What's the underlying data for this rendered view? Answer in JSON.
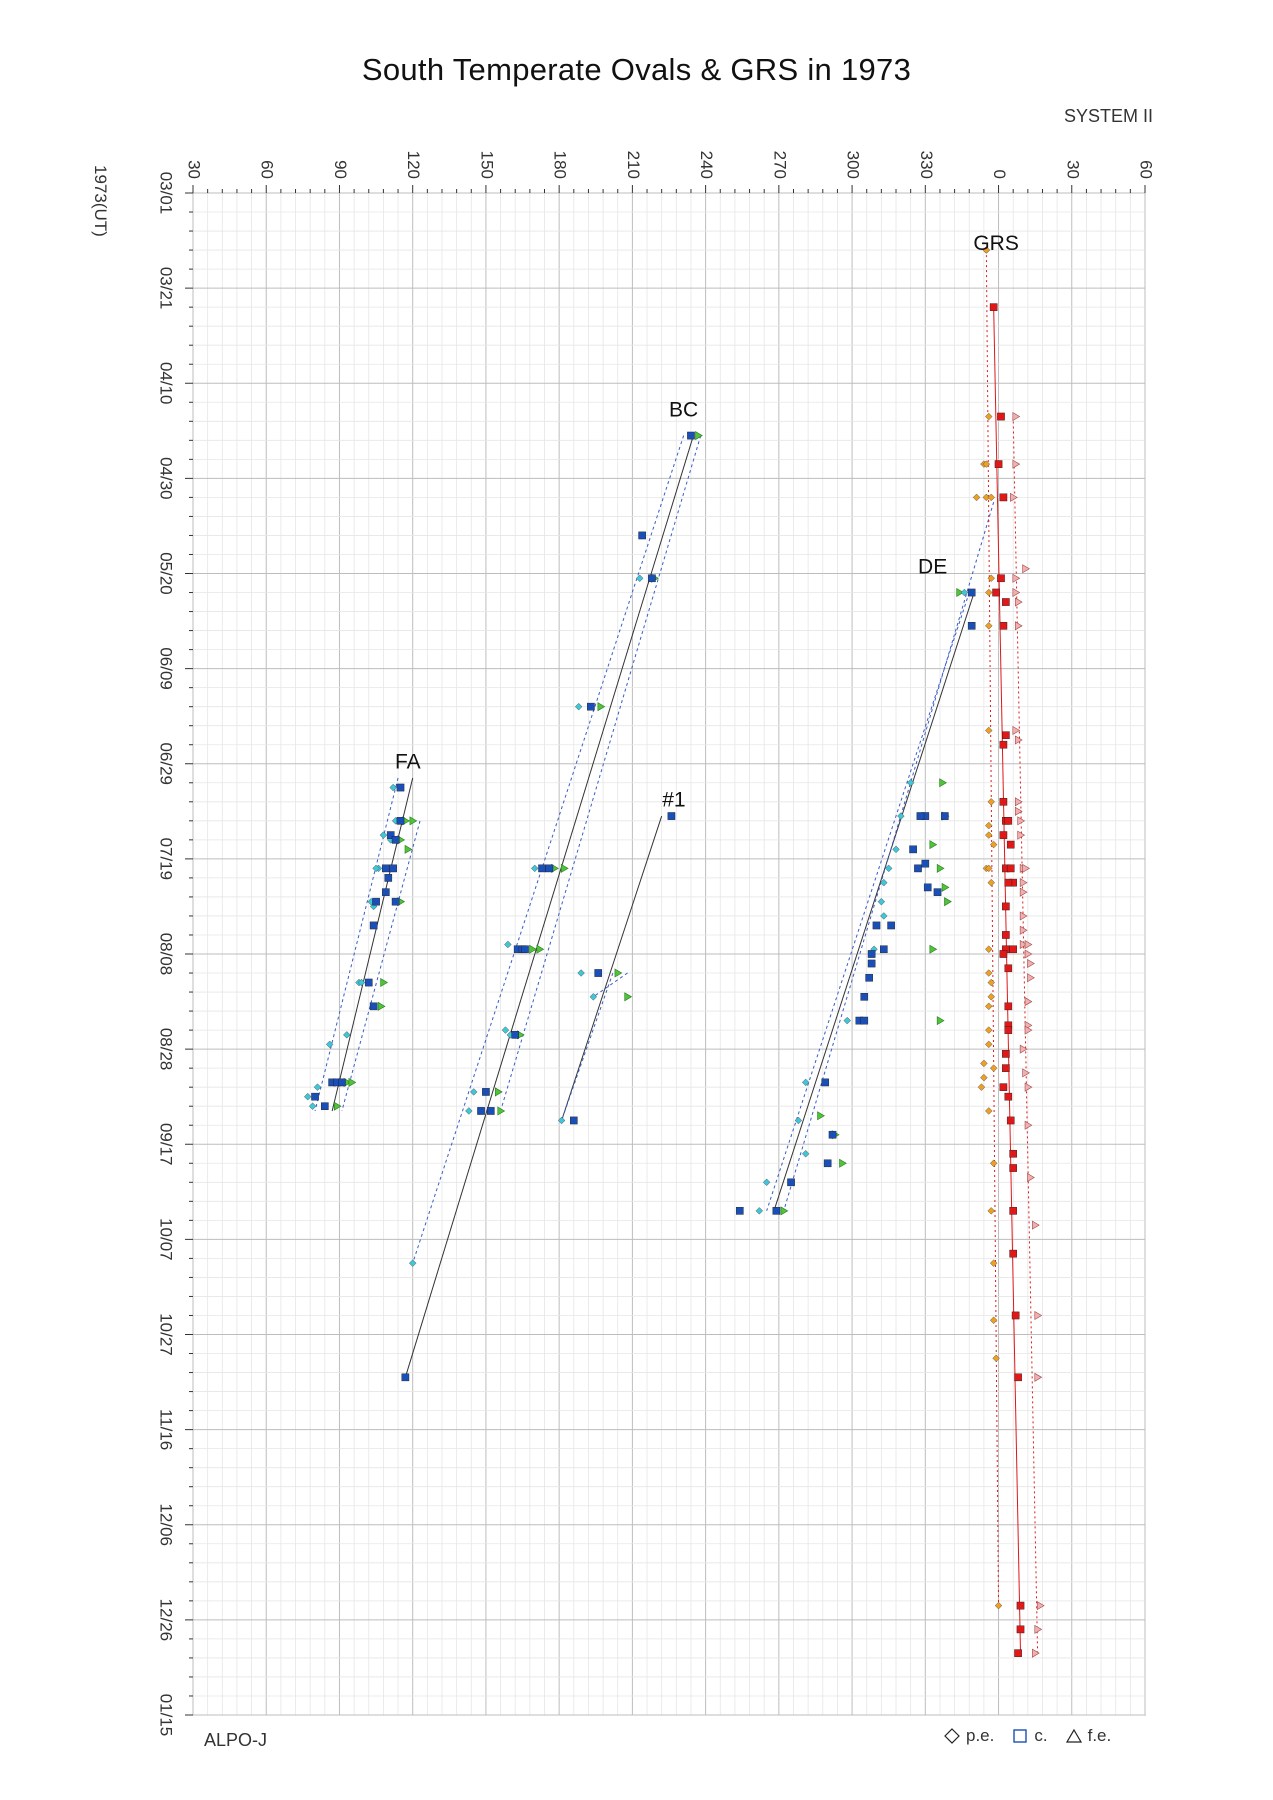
{
  "chart_data": {
    "type": "scatter",
    "title": "South Temperate Ovals & GRS in 1973",
    "system_label": "SYSTEM II",
    "ylabel": "1973(UT)",
    "source": "ALPO-J",
    "x_tick_labels": [
      "30",
      "60",
      "90",
      "120",
      "150",
      "180",
      "210",
      "240",
      "270",
      "300",
      "330",
      "0",
      "30",
      "60"
    ],
    "x_range": [
      30,
      420
    ],
    "y_tick_labels": [
      "03/01",
      "03/21",
      "04/10",
      "04/30",
      "05/20",
      "06/09",
      "06/29",
      "07/19",
      "08/08",
      "08/28",
      "09/17",
      "10/07",
      "10/27",
      "11/16",
      "12/06",
      "12/26",
      "01/15"
    ],
    "y_range_days": [
      0,
      320
    ],
    "grid": true,
    "legend": {
      "placement": "bottom-right",
      "entries": [
        {
          "symbol": "diamond",
          "label": "p.e."
        },
        {
          "symbol": "square",
          "label": "c."
        },
        {
          "symbol": "triangle",
          "label": "f.e."
        }
      ]
    },
    "colors": {
      "pe_oval": "#3ec7d8",
      "c_oval": "#1b4fb8",
      "fe_oval": "#4fc43a",
      "pe_grs": "#f0a020",
      "c_grs": "#e01818",
      "fe_grs": "#f0b0b0",
      "grid": "#d0d0d0"
    },
    "annotations": [
      {
        "text": "GRS",
        "x": 359,
        "day": 12
      },
      {
        "text": "BC",
        "x": 231,
        "day": 47
      },
      {
        "text": "DE",
        "x": 333,
        "day": 80
      },
      {
        "text": "FA",
        "x": 118,
        "day": 121
      },
      {
        "text": "#1",
        "x": 227,
        "day": 129
      }
    ],
    "series": [
      {
        "name": "FA",
        "pe": [
          [
            112,
            125
          ],
          [
            113,
            132
          ],
          [
            108,
            135
          ],
          [
            111,
            136
          ],
          [
            106,
            142
          ],
          [
            105,
            142
          ],
          [
            103,
            149
          ],
          [
            104,
            150
          ],
          [
            98,
            166
          ],
          [
            99,
            166
          ],
          [
            93,
            177
          ],
          [
            86,
            179
          ],
          [
            88,
            187
          ],
          [
            81,
            188
          ],
          [
            77,
            190
          ],
          [
            79,
            192
          ],
          [
            84,
            192
          ]
        ],
        "c": [
          [
            115,
            125
          ],
          [
            115,
            132
          ],
          [
            111,
            135
          ],
          [
            113,
            136
          ],
          [
            109,
            142
          ],
          [
            112,
            142
          ],
          [
            110,
            144
          ],
          [
            109,
            147
          ],
          [
            105,
            149
          ],
          [
            113,
            149
          ],
          [
            104,
            154
          ],
          [
            102,
            166
          ],
          [
            104,
            171
          ],
          [
            87,
            187
          ],
          [
            89,
            187
          ],
          [
            91,
            187
          ],
          [
            80,
            190
          ],
          [
            84,
            192
          ]
        ],
        "fe": [
          [
            117,
            132
          ],
          [
            120,
            132
          ],
          [
            115,
            136
          ],
          [
            118,
            138
          ],
          [
            115,
            149
          ],
          [
            108,
            166
          ],
          [
            107,
            171
          ],
          [
            93,
            187
          ],
          [
            95,
            187
          ],
          [
            89,
            192
          ]
        ],
        "fit_c": [
          [
            120,
            123
          ],
          [
            87,
            193
          ]
        ],
        "fit_pe": [
          [
            114,
            123
          ],
          [
            80,
            193
          ]
        ],
        "fit_fe": [
          [
            123,
            132
          ],
          [
            91,
            193
          ]
        ]
      },
      {
        "name": "BC",
        "pe": [
          [
            213,
            81
          ],
          [
            188,
            108
          ],
          [
            174,
            142
          ],
          [
            170,
            142
          ],
          [
            163,
            159
          ],
          [
            159,
            158
          ],
          [
            158,
            176
          ],
          [
            160,
            177
          ],
          [
            145,
            189
          ],
          [
            143,
            193
          ],
          [
            120,
            225
          ]
        ],
        "c": [
          [
            234,
            51
          ],
          [
            214,
            72
          ],
          [
            218,
            81
          ],
          [
            193,
            108
          ],
          [
            173,
            142
          ],
          [
            176,
            142
          ],
          [
            163,
            159
          ],
          [
            165,
            159
          ],
          [
            166,
            159
          ],
          [
            162,
            177
          ],
          [
            150,
            189
          ],
          [
            148,
            193
          ],
          [
            152,
            193
          ],
          [
            117,
            249
          ]
        ],
        "fe": [
          [
            237,
            51
          ],
          [
            219,
            81
          ],
          [
            197,
            108
          ],
          [
            178,
            142
          ],
          [
            182,
            142
          ],
          [
            169,
            159
          ],
          [
            172,
            159
          ],
          [
            164,
            177
          ],
          [
            155,
            189
          ],
          [
            156,
            193
          ]
        ],
        "fit_c": [
          [
            235,
            51
          ],
          [
            117,
            249
          ]
        ],
        "fit_pe": [
          [
            231,
            51
          ],
          [
            120,
            225
          ]
        ],
        "fit_fe": [
          [
            238,
            51
          ],
          [
            156,
            193
          ]
        ]
      },
      {
        "name": "#1",
        "pe": [
          [
            189,
            164
          ],
          [
            181,
            195
          ],
          [
            194,
            169
          ]
        ],
        "c": [
          [
            226,
            131
          ],
          [
            196,
            164
          ],
          [
            186,
            195
          ]
        ],
        "fe": [
          [
            204,
            164
          ],
          [
            208,
            169
          ]
        ],
        "fit_c": [
          [
            222,
            131
          ],
          [
            181,
            195
          ]
        ],
        "fit_pe": [
          [
            202,
            164
          ],
          [
            181,
            195
          ]
        ],
        "fit_fe": [
          [
            208,
            164
          ],
          [
            194,
            169
          ]
        ]
      },
      {
        "name": "DE",
        "pe": [
          [
            346,
            84
          ],
          [
            324,
            124
          ],
          [
            320,
            131
          ],
          [
            318,
            138
          ],
          [
            315,
            142
          ],
          [
            313,
            145
          ],
          [
            312,
            149
          ],
          [
            313,
            152
          ],
          [
            309,
            159
          ],
          [
            298,
            174
          ],
          [
            303,
            174
          ],
          [
            281,
            187
          ],
          [
            278,
            195
          ],
          [
            281,
            202
          ],
          [
            265,
            208
          ],
          [
            262,
            214
          ]
        ],
        "c": [
          [
            349,
            84
          ],
          [
            349,
            91
          ],
          [
            330,
            131
          ],
          [
            328,
            131
          ],
          [
            338,
            131
          ],
          [
            325,
            138
          ],
          [
            330,
            141
          ],
          [
            331,
            146
          ],
          [
            327,
            142
          ],
          [
            335,
            147
          ],
          [
            310,
            154
          ],
          [
            316,
            154
          ],
          [
            313,
            159
          ],
          [
            308,
            160
          ],
          [
            308,
            162
          ],
          [
            307,
            165
          ],
          [
            305,
            169
          ],
          [
            303,
            174
          ],
          [
            305,
            174
          ],
          [
            289,
            187
          ],
          [
            292,
            198
          ],
          [
            290,
            204
          ],
          [
            275,
            208
          ],
          [
            269,
            214
          ],
          [
            254,
            214
          ]
        ],
        "fe": [
          [
            344,
            84
          ],
          [
            337,
            124
          ],
          [
            338,
            131
          ],
          [
            333,
            137
          ],
          [
            336,
            142
          ],
          [
            338,
            146
          ],
          [
            339,
            149
          ],
          [
            333,
            159
          ],
          [
            336,
            174
          ],
          [
            287,
            194
          ],
          [
            293,
            198
          ],
          [
            296,
            204
          ],
          [
            272,
            214
          ]
        ],
        "fit_c": [
          [
            350,
            84
          ],
          [
            268,
            214
          ]
        ],
        "fit_pe": [
          [
            348,
            84
          ],
          [
            265,
            214
          ]
        ],
        "fit_fe": [
          [
            358,
            65
          ],
          [
            272,
            214
          ]
        ]
      },
      {
        "name": "GRS",
        "pe": [
          [
            355,
            12
          ],
          [
            355,
            12
          ],
          [
            356,
            47
          ],
          [
            354,
            57
          ],
          [
            355,
            57
          ],
          [
            351,
            64
          ],
          [
            355,
            64
          ],
          [
            357,
            64
          ],
          [
            357,
            81
          ],
          [
            356,
            84
          ],
          [
            356,
            91
          ],
          [
            356,
            113
          ],
          [
            357,
            128
          ],
          [
            356,
            133
          ],
          [
            356,
            135
          ],
          [
            358,
            137
          ],
          [
            355,
            142
          ],
          [
            356,
            142
          ],
          [
            357,
            145
          ],
          [
            356,
            159
          ],
          [
            356,
            164
          ],
          [
            357,
            166
          ],
          [
            357,
            169
          ],
          [
            356,
            171
          ],
          [
            356,
            176
          ],
          [
            356,
            179
          ],
          [
            354,
            183
          ],
          [
            354,
            186
          ],
          [
            353,
            188
          ],
          [
            358,
            184
          ],
          [
            356,
            193
          ],
          [
            358,
            204
          ],
          [
            357,
            214
          ],
          [
            358,
            225
          ],
          [
            358,
            237
          ],
          [
            359,
            245
          ],
          [
            360,
            297
          ]
        ],
        "c": [
          [
            358,
            24
          ],
          [
            361,
            47
          ],
          [
            360,
            57
          ],
          [
            362,
            64
          ],
          [
            359,
            84
          ],
          [
            361,
            81
          ],
          [
            363,
            86
          ],
          [
            362,
            91
          ],
          [
            363,
            114
          ],
          [
            362,
            116
          ],
          [
            362,
            128
          ],
          [
            363,
            132
          ],
          [
            364,
            132
          ],
          [
            362,
            135
          ],
          [
            365,
            137
          ],
          [
            363,
            142
          ],
          [
            366,
            145
          ],
          [
            364,
            145
          ],
          [
            365,
            142
          ],
          [
            363,
            150
          ],
          [
            363,
            156
          ],
          [
            363,
            159
          ],
          [
            366,
            159
          ],
          [
            362,
            160
          ],
          [
            364,
            163
          ],
          [
            364,
            171
          ],
          [
            364,
            175
          ],
          [
            364,
            176
          ],
          [
            363,
            181
          ],
          [
            363,
            184
          ],
          [
            362,
            188
          ],
          [
            364,
            190
          ],
          [
            365,
            195
          ],
          [
            366,
            202
          ],
          [
            366,
            205
          ],
          [
            366,
            214
          ],
          [
            366,
            223
          ],
          [
            367,
            236
          ],
          [
            368,
            249
          ],
          [
            369,
            297
          ],
          [
            369,
            302
          ],
          [
            368,
            307
          ]
        ],
        "fe": [
          [
            367,
            47
          ],
          [
            367,
            57
          ],
          [
            366,
            64
          ],
          [
            371,
            79
          ],
          [
            367,
            81
          ],
          [
            367,
            84
          ],
          [
            368,
            86
          ],
          [
            368,
            91
          ],
          [
            367,
            113
          ],
          [
            368,
            115
          ],
          [
            368,
            128
          ],
          [
            368,
            130
          ],
          [
            369,
            132
          ],
          [
            369,
            135
          ],
          [
            370,
            142
          ],
          [
            371,
            142
          ],
          [
            370,
            145
          ],
          [
            370,
            147
          ],
          [
            370,
            152
          ],
          [
            370,
            155
          ],
          [
            370,
            158
          ],
          [
            372,
            158
          ],
          [
            372,
            160
          ],
          [
            373,
            162
          ],
          [
            373,
            165
          ],
          [
            372,
            170
          ],
          [
            372,
            175
          ],
          [
            372,
            176
          ],
          [
            370,
            180
          ],
          [
            371,
            185
          ],
          [
            372,
            188
          ],
          [
            372,
            196
          ],
          [
            373,
            207
          ],
          [
            375,
            217
          ],
          [
            376,
            236
          ],
          [
            376,
            249
          ],
          [
            377,
            297
          ],
          [
            376,
            302
          ],
          [
            375,
            307
          ]
        ],
        "fit_c": [
          [
            358,
            24
          ],
          [
            369,
            307
          ]
        ],
        "fit_pe": [
          [
            355,
            12
          ],
          [
            360,
            297
          ]
        ],
        "fit_fe": [
          [
            366,
            47
          ],
          [
            376,
            307
          ]
        ]
      }
    ]
  }
}
